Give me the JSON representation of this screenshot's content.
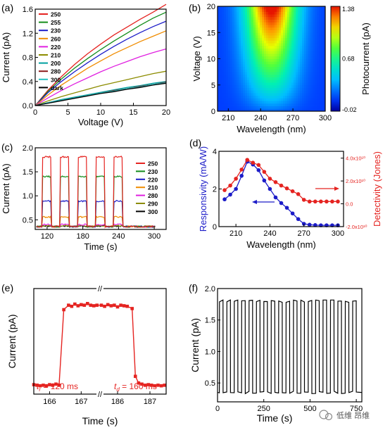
{
  "colors": {
    "black": "#000000",
    "red": "#e52421",
    "green": "#138c1a",
    "blue": "#1c1cc8",
    "orange": "#f08c00",
    "magenta": "#e020e0",
    "olive": "#8c8c00",
    "teal": "#00a0a0",
    "darkred": "#8b1a1a"
  },
  "watermark": {
    "text": "低维 昂维"
  },
  "chart_data": [
    {
      "panel": "a",
      "panel_label": "(a)",
      "type": "line",
      "xlabel": "Voltage (V)",
      "ylabel": "Current (pA)",
      "xlim": [
        0,
        20
      ],
      "ylim": [
        0,
        1.6
      ],
      "xticks": [
        0,
        5,
        10,
        15,
        20
      ],
      "xtick_labels": [
        "0",
        "5",
        "10",
        "15",
        "20"
      ],
      "yticks": [
        0,
        0.4,
        0.8,
        1.2,
        1.6
      ],
      "ytick_labels": [
        "0.0",
        "0.4",
        "0.8",
        "1.2",
        "1.6"
      ],
      "legend_position": "top-left",
      "x": [
        0,
        2,
        4,
        6,
        8,
        10,
        12,
        14,
        16,
        18,
        20
      ],
      "series": [
        {
          "name": "250",
          "color": "#e52421",
          "values": [
            0,
            0.26,
            0.48,
            0.68,
            0.86,
            1.02,
            1.17,
            1.3,
            1.43,
            1.55,
            1.68
          ]
        },
        {
          "name": "255",
          "color": "#138c1a",
          "values": [
            0,
            0.24,
            0.44,
            0.62,
            0.78,
            0.93,
            1.07,
            1.2,
            1.33,
            1.45,
            1.55
          ]
        },
        {
          "name": "230",
          "color": "#1c1cc8",
          "values": [
            0,
            0.22,
            0.4,
            0.56,
            0.71,
            0.85,
            0.98,
            1.1,
            1.21,
            1.31,
            1.4
          ]
        },
        {
          "name": "260",
          "color": "#f08c00",
          "values": [
            0,
            0.18,
            0.34,
            0.48,
            0.62,
            0.74,
            0.86,
            0.96,
            1.06,
            1.15,
            1.24
          ]
        },
        {
          "name": "220",
          "color": "#e020e0",
          "values": [
            0,
            0.13,
            0.25,
            0.36,
            0.46,
            0.56,
            0.65,
            0.73,
            0.81,
            0.88,
            0.94
          ]
        },
        {
          "name": "210",
          "color": "#8c8c00",
          "values": [
            0,
            0.08,
            0.15,
            0.21,
            0.27,
            0.33,
            0.38,
            0.43,
            0.48,
            0.53,
            0.57
          ]
        },
        {
          "name": "200",
          "color": "#00a0a0",
          "values": [
            0,
            0.05,
            0.1,
            0.14,
            0.18,
            0.22,
            0.26,
            0.3,
            0.33,
            0.37,
            0.4
          ]
        },
        {
          "name": "280",
          "color": "#8b1a1a",
          "values": [
            0,
            0.05,
            0.09,
            0.13,
            0.17,
            0.21,
            0.25,
            0.28,
            0.32,
            0.35,
            0.39
          ]
        },
        {
          "name": "300",
          "color": "#22c0c0",
          "values": [
            0,
            0.05,
            0.09,
            0.13,
            0.17,
            0.21,
            0.24,
            0.28,
            0.31,
            0.35,
            0.38
          ]
        },
        {
          "name": "dark",
          "color": "#000000",
          "values": [
            0,
            0.04,
            0.08,
            0.12,
            0.16,
            0.2,
            0.23,
            0.27,
            0.3,
            0.34,
            0.37
          ]
        }
      ]
    },
    {
      "panel": "b",
      "panel_label": "(b)",
      "type": "heatmap",
      "xlabel": "Wavelength (nm)",
      "ylabel": "Voltage (V)",
      "colorbar_label": "Photocurrent (pA)",
      "xlim": [
        200,
        300
      ],
      "ylim": [
        0,
        20
      ],
      "xticks": [
        210,
        240,
        270,
        300
      ],
      "xtick_labels": [
        "210",
        "240",
        "270",
        "300"
      ],
      "yticks": [
        0,
        5,
        10,
        15,
        20
      ],
      "ytick_labels": [
        "0",
        "5",
        "10",
        "15",
        "20"
      ],
      "colorbar_ticks": [
        "1.38",
        "0.68",
        "-0.02"
      ],
      "colorbar_range": [
        -0.02,
        1.38
      ],
      "peak_wavelength": 250
    },
    {
      "panel": "c",
      "panel_label": "(c)",
      "type": "line",
      "xlabel": "Time (s)",
      "ylabel": "Current (pA)",
      "xlim": [
        100,
        320
      ],
      "ylim": [
        0.3,
        2.0
      ],
      "xticks": [
        120,
        180,
        240,
        300
      ],
      "xtick_labels": [
        "120",
        "180",
        "240",
        "300"
      ],
      "yticks": [
        0.5,
        1.0,
        1.5,
        2.0
      ],
      "ytick_labels": [
        "0.5",
        "1.0",
        "1.5",
        "2.0"
      ],
      "legend_position": "top-right",
      "on_intervals": [
        [
          112,
          126
        ],
        [
          142,
          156
        ],
        [
          172,
          186
        ],
        [
          202,
          216
        ],
        [
          232,
          246
        ]
      ],
      "baseline": 0.36,
      "series": [
        {
          "name": "250",
          "color": "#e52421",
          "on_value": 1.81
        },
        {
          "name": "230",
          "color": "#138c1a",
          "on_value": 1.4
        },
        {
          "name": "220",
          "color": "#1c1cc8",
          "on_value": 0.89
        },
        {
          "name": "210",
          "color": "#f08c00",
          "on_value": 0.56
        },
        {
          "name": "280",
          "color": "#e020e0",
          "on_value": 0.4
        },
        {
          "name": "290",
          "color": "#8c8c00",
          "on_value": 0.38
        },
        {
          "name": "300",
          "color": "#000000",
          "on_value": 0.37
        }
      ]
    },
    {
      "panel": "d",
      "panel_label": "(d)",
      "type": "line",
      "xlabel": "Wavelength (nm)",
      "ylabel": "Responsivity (mA/W)",
      "ylabel_right": "Detectivity (Jones)",
      "xlim": [
        195,
        305
      ],
      "ylim": [
        0,
        4
      ],
      "ylim_right": [
        -2,
        4.6
      ],
      "xticks": [
        210,
        240,
        270,
        300
      ],
      "xtick_labels": [
        "210",
        "240",
        "270",
        "300"
      ],
      "yticks": [
        0,
        2,
        4
      ],
      "ytick_labels": [
        "0",
        "2",
        "4"
      ],
      "yticks_right": [
        -2,
        0,
        2,
        4
      ],
      "ytick_labels_right": [
        "-2.0x10¹⁰",
        "0.0",
        "2.0x10¹⁰",
        "4.0x10¹⁰"
      ],
      "x": [
        200,
        205,
        210,
        215,
        220,
        225,
        230,
        235,
        240,
        245,
        250,
        255,
        260,
        265,
        270,
        275,
        280,
        285,
        290,
        295,
        300
      ],
      "series": [
        {
          "name": "Responsivity",
          "color": "#1c1cc8",
          "axis": "left",
          "values": [
            1.45,
            1.7,
            2.0,
            2.7,
            3.45,
            3.3,
            3.0,
            2.45,
            2.0,
            1.55,
            1.25,
            1.0,
            0.7,
            0.4,
            0.15,
            0.1,
            0.08,
            0.07,
            0.07,
            0.07,
            0.07
          ]
        },
        {
          "name": "Detectivity",
          "color": "#e52421",
          "axis": "right",
          "values": [
            1.2,
            1.6,
            2.2,
            3.0,
            3.85,
            3.6,
            3.4,
            2.8,
            2.2,
            1.9,
            1.6,
            1.35,
            1.1,
            0.85,
            0.35,
            0.2,
            0.2,
            0.2,
            0.2,
            0.2,
            0.2
          ]
        }
      ]
    },
    {
      "panel": "e",
      "panel_label": "(e)",
      "type": "line",
      "xlabel": "Time (s)",
      "ylabel": "Current (pA)",
      "xtick_labels": [
        "166",
        "167",
        "186",
        "187"
      ],
      "axis_break": "//",
      "annotation_rise": "t",
      "annotation_rise_sub": "r",
      "annotation_rise_value": " = 120 ms",
      "annotation_decay": "t",
      "annotation_decay_sub": "d",
      "annotation_decay_value": " = 160 ms",
      "color": "#e52421",
      "segment_1": {
        "x": [
          165.5,
          165.6,
          165.7,
          165.8,
          165.9,
          166.0,
          166.1,
          166.2,
          166.3,
          166.45,
          166.6,
          166.7,
          166.8,
          166.9,
          167.0,
          167.1,
          167.2,
          167.3,
          167.4,
          167.5
        ],
        "y": [
          0.37,
          0.36,
          0.35,
          0.36,
          0.35,
          0.37,
          0.36,
          0.38,
          0.36,
          1.72,
          1.8,
          1.78,
          1.82,
          1.79,
          1.81,
          1.8,
          1.83,
          1.8,
          1.79,
          1.8
        ]
      },
      "segment_2": {
        "x": [
          185.5,
          185.6,
          185.7,
          185.8,
          185.9,
          186.0,
          186.1,
          186.2,
          186.3,
          186.45,
          186.55,
          186.65,
          186.75,
          186.85,
          186.95,
          187.05,
          187.15,
          187.25,
          187.35,
          187.45
        ],
        "y": [
          1.8,
          1.78,
          1.81,
          1.79,
          1.8,
          1.77,
          1.8,
          1.79,
          1.78,
          1.74,
          0.52,
          0.4,
          0.38,
          0.36,
          0.37,
          0.36,
          0.35,
          0.36,
          0.35,
          0.36
        ]
      },
      "ylim": [
        0.2,
        2.1
      ]
    },
    {
      "panel": "f",
      "panel_label": "(f)",
      "type": "line",
      "xlabel": "Time (s)",
      "ylabel": "Current (pA)",
      "xlim": [
        0,
        780
      ],
      "ylim": [
        0.2,
        2.0
      ],
      "xticks": [
        0,
        250,
        500,
        750
      ],
      "xtick_labels": [
        "0",
        "250",
        "500",
        "750"
      ],
      "yticks": [
        0.5,
        1.0,
        1.5,
        2.0
      ],
      "ytick_labels": [
        "0.5",
        "1.0",
        "1.5",
        "2.0"
      ],
      "cycles": 19,
      "period": 40,
      "on_value": 1.8,
      "off_value": 0.35,
      "color": "#000000"
    }
  ]
}
